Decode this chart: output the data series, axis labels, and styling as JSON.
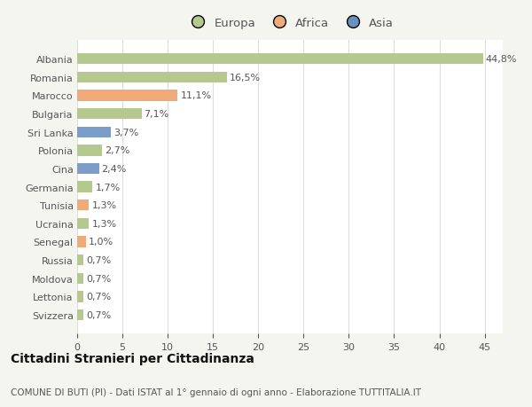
{
  "categories": [
    "Albania",
    "Romania",
    "Marocco",
    "Bulgaria",
    "Sri Lanka",
    "Polonia",
    "Cina",
    "Germania",
    "Tunisia",
    "Ucraina",
    "Senegal",
    "Russia",
    "Moldova",
    "Lettonia",
    "Svizzera"
  ],
  "values": [
    44.8,
    16.5,
    11.1,
    7.1,
    3.7,
    2.7,
    2.4,
    1.7,
    1.3,
    1.3,
    1.0,
    0.7,
    0.7,
    0.7,
    0.7
  ],
  "labels": [
    "44,8%",
    "16,5%",
    "11,1%",
    "7,1%",
    "3,7%",
    "2,7%",
    "2,4%",
    "1,7%",
    "1,3%",
    "1,3%",
    "1,0%",
    "0,7%",
    "0,7%",
    "0,7%",
    "0,7%"
  ],
  "colors": [
    "#b5c98e",
    "#b5c98e",
    "#f0aa78",
    "#b5c98e",
    "#7b9dc7",
    "#b5c98e",
    "#7b9dc7",
    "#b5c98e",
    "#f0aa78",
    "#b5c98e",
    "#f0aa78",
    "#b5c98e",
    "#b5c98e",
    "#b5c98e",
    "#b5c98e"
  ],
  "legend_europa_color": "#b5c98e",
  "legend_africa_color": "#f0aa78",
  "legend_asia_color": "#6b8fbf",
  "xlim": [
    0,
    47
  ],
  "xticks": [
    0,
    5,
    10,
    15,
    20,
    25,
    30,
    35,
    40,
    45
  ],
  "title": "Cittadini Stranieri per Cittadinanza",
  "subtitle": "COMUNE DI BUTI (PI) - Dati ISTAT al 1° gennaio di ogni anno - Elaborazione TUTTITALIA.IT",
  "background_color": "#f5f5f0",
  "bar_background": "#ffffff",
  "grid_color": "#dddddd",
  "label_fontsize": 8.0,
  "tick_fontsize": 8.0,
  "title_fontsize": 10.0,
  "subtitle_fontsize": 7.5,
  "text_color": "#555555",
  "title_color": "#111111"
}
